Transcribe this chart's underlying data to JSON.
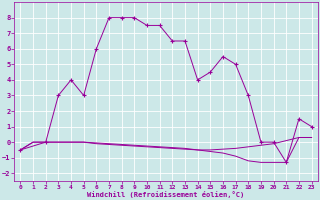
{
  "xlabel": "Windchill (Refroidissement éolien,°C)",
  "background_color": "#cce8e8",
  "grid_color": "#ffffff",
  "line_color": "#990099",
  "xlim": [
    -0.5,
    23.5
  ],
  "ylim": [
    -2.5,
    9.0
  ],
  "xticks": [
    0,
    1,
    2,
    3,
    4,
    5,
    6,
    7,
    8,
    9,
    10,
    11,
    12,
    13,
    14,
    15,
    16,
    17,
    18,
    19,
    20,
    21,
    22,
    23
  ],
  "yticks": [
    -2,
    -1,
    0,
    1,
    2,
    3,
    4,
    5,
    6,
    7,
    8
  ],
  "series1_x": [
    0,
    1,
    2,
    3,
    4,
    5,
    6,
    7,
    8,
    9,
    10,
    11,
    12,
    13,
    14,
    15,
    16,
    17,
    18,
    19,
    20,
    21,
    22,
    23
  ],
  "series1_y": [
    -0.5,
    0,
    0,
    0,
    0,
    0,
    -0.1,
    -0.15,
    -0.2,
    -0.25,
    -0.3,
    -0.35,
    -0.4,
    -0.45,
    -0.5,
    -0.5,
    -0.45,
    -0.4,
    -0.3,
    -0.2,
    -0.1,
    0.1,
    0.3,
    0.3
  ],
  "series2_x": [
    0,
    1,
    2,
    3,
    4,
    5,
    6,
    7,
    8,
    9,
    10,
    11,
    12,
    13,
    14,
    15,
    16,
    17,
    18,
    19,
    20,
    21,
    22,
    23
  ],
  "series2_y": [
    -0.5,
    0,
    0,
    0,
    0,
    0,
    -0.05,
    -0.1,
    -0.15,
    -0.2,
    -0.25,
    -0.3,
    -0.35,
    -0.4,
    -0.5,
    -0.6,
    -0.7,
    -0.9,
    -1.2,
    -1.3,
    -1.3,
    -1.3,
    0.3,
    0.3
  ],
  "series3_x": [
    0,
    2,
    3,
    4,
    5,
    6,
    7,
    8,
    9,
    10,
    11,
    12,
    13,
    14,
    15,
    16,
    17,
    18,
    19,
    20,
    21,
    22,
    23
  ],
  "series3_y": [
    -0.5,
    0,
    3,
    4,
    3,
    6,
    8,
    8,
    8,
    7.5,
    7.5,
    6.5,
    6.5,
    4,
    4.5,
    5.5,
    5,
    3,
    0,
    0,
    -1.3,
    1.5,
    1
  ]
}
